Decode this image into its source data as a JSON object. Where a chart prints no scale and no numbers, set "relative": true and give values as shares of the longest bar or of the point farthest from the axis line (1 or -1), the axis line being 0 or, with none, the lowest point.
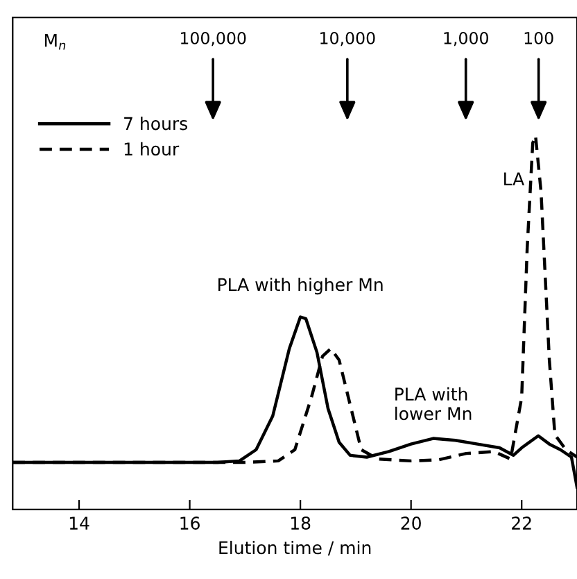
{
  "chart_data": {
    "type": "line",
    "xlabel": "Elution time / min",
    "relative": true,
    "xlim": [
      12.8,
      23
    ],
    "xticks": [
      14,
      16,
      18,
      20,
      22
    ],
    "grid": false,
    "legend": "top left",
    "marker": "none",
    "series": [
      {
        "name": "7 hours",
        "color": "#000000",
        "line_style": "solid",
        "x": [
          12.8,
          16.5,
          16.9,
          17.2,
          17.5,
          17.8,
          18.0,
          18.1,
          18.3,
          18.5,
          18.7,
          18.9,
          19.2,
          19.6,
          20.0,
          20.4,
          20.8,
          21.2,
          21.6,
          21.85,
          22.0,
          22.3,
          22.5,
          22.7,
          22.9,
          23.0
        ],
        "values": [
          0.126,
          0.126,
          0.13,
          0.16,
          0.25,
          0.43,
          0.515,
          0.51,
          0.42,
          0.27,
          0.18,
          0.145,
          0.14,
          0.155,
          0.175,
          0.19,
          0.185,
          0.175,
          0.165,
          0.145,
          0.165,
          0.197,
          0.175,
          0.16,
          0.14,
          0.06
        ]
      },
      {
        "name": "1 hour",
        "color": "#000000",
        "line_style": "dashed",
        "x": [
          12.8,
          17.0,
          17.6,
          17.9,
          18.2,
          18.4,
          18.55,
          18.7,
          18.9,
          19.1,
          19.4,
          20.0,
          20.5,
          21.0,
          21.5,
          21.8,
          22.0,
          22.1,
          22.2,
          22.25,
          22.35,
          22.5,
          22.6,
          22.8,
          23.0
        ],
        "values": [
          0.126,
          0.126,
          0.13,
          0.16,
          0.3,
          0.41,
          0.43,
          0.4,
          0.28,
          0.16,
          0.135,
          0.13,
          0.133,
          0.15,
          0.155,
          0.135,
          0.3,
          0.7,
          0.98,
          1.0,
          0.85,
          0.4,
          0.2,
          0.16,
          0.14
        ]
      }
    ],
    "annotations": [
      "M$_{n}$",
      "100,000",
      "10,000",
      "1,000",
      "100",
      {
        "text": "LA",
        "x": 22.25,
        "y": 1.0
      },
      {
        "text": "PLA with higher Mn",
        "x": 18.0,
        "y": 0.515
      },
      {
        "text": "PLA with\nlower Mn",
        "x": 20.4,
        "y": 0.19
      }
    ]
  }
}
